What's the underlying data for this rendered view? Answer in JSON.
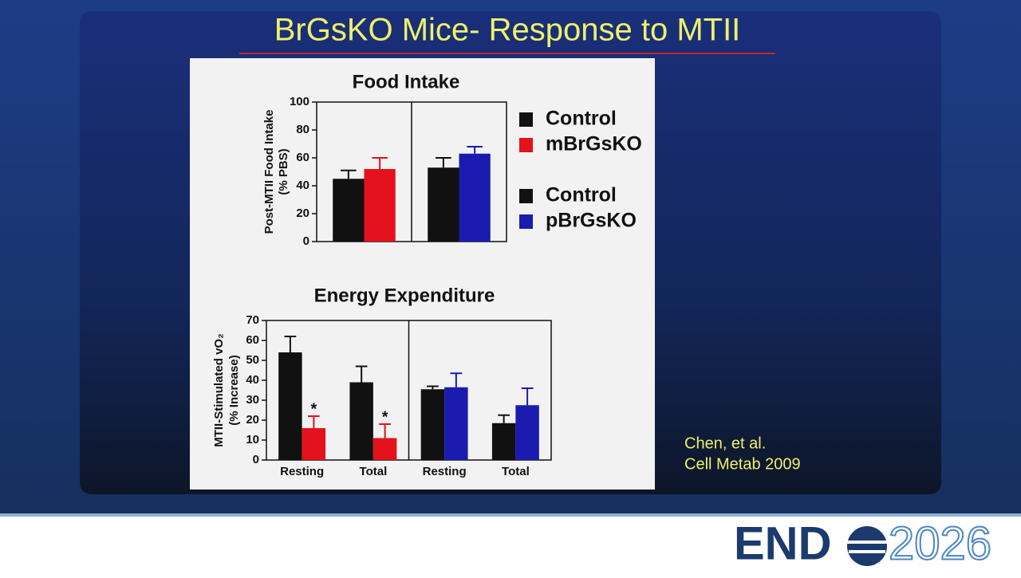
{
  "slide_title": "BrGsKO Mice- Response to MTII",
  "citation": [
    "Chen, et al.",
    "Cell Metab 2009"
  ],
  "logo": {
    "word": "END",
    "year": "2026"
  },
  "chart_data": [
    {
      "type": "bar",
      "title": "Food Intake",
      "y_label": [
        "Post-MTII Food Intake",
        "(% PBS)"
      ],
      "ylim": [
        0,
        100
      ],
      "yticks": [
        0,
        20,
        40,
        60,
        80,
        100
      ],
      "legend": "right",
      "panels": [
        {
          "series": [
            {
              "name": "Control",
              "color": "#111111",
              "values": [
                45
              ],
              "errors": [
                6
              ]
            },
            {
              "name": "mBrGsKO",
              "color": "#e3121c",
              "values": [
                52
              ],
              "errors": [
                8
              ]
            }
          ]
        },
        {
          "series": [
            {
              "name": "Control",
              "color": "#111111",
              "values": [
                53
              ],
              "errors": [
                7
              ]
            },
            {
              "name": "pBrGsKO",
              "color": "#1b1bb0",
              "values": [
                63
              ],
              "errors": [
                5
              ]
            }
          ]
        }
      ]
    },
    {
      "type": "bar",
      "title": "Energy Expenditure",
      "y_label": [
        "MTII-Stimulated vO₂",
        "(% Increase)"
      ],
      "ylim": [
        0,
        70
      ],
      "yticks": [
        0,
        10,
        20,
        30,
        40,
        50,
        60,
        70
      ],
      "panels": [
        {
          "categories": [
            "Resting",
            "Total"
          ],
          "series": [
            {
              "color": "#111111",
              "values": [
                54,
                39
              ],
              "errors": [
                8,
                8
              ]
            },
            {
              "color": "#e3121c",
              "values": [
                16,
                11
              ],
              "errors": [
                6,
                7
              ],
              "annotations": [
                "*",
                "*"
              ]
            }
          ]
        },
        {
          "categories": [
            "Resting",
            "Total"
          ],
          "series": [
            {
              "color": "#111111",
              "values": [
                35.5,
                18.5
              ],
              "errors": [
                1.5,
                4
              ]
            },
            {
              "color": "#1b1bb0",
              "values": [
                36.5,
                27.5
              ],
              "errors": [
                7,
                8.5
              ]
            }
          ]
        }
      ]
    }
  ]
}
